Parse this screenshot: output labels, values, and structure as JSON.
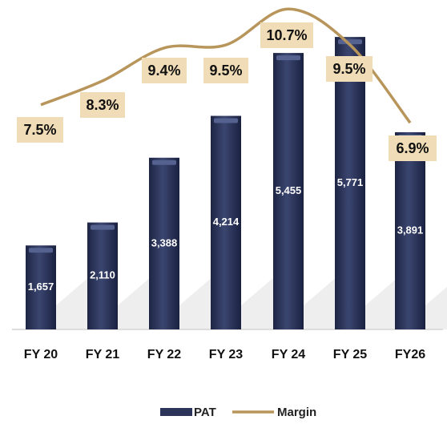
{
  "chart_data": {
    "type": "bar_line",
    "categories": [
      "FY 20",
      "FY 21",
      "FY 22",
      "FY 23",
      "FY 24",
      "FY 25",
      "FY26"
    ],
    "series": [
      {
        "name": "PAT",
        "color": "#2c3559",
        "values": [
          1657,
          2110,
          3388,
          4214,
          5455,
          5771,
          3891
        ],
        "value_labels": [
          "1,657",
          "2,110",
          "3,388",
          "4,214",
          "5,455",
          "5,771",
          "3,891"
        ]
      },
      {
        "name": "Margin",
        "color": "#b8955a",
        "axis": "y2",
        "values": [
          7.5,
          8.3,
          9.4,
          9.5,
          10.7,
          9.5,
          6.9
        ],
        "value_labels": [
          "7.5%",
          "8.3%",
          "9.4%",
          "9.5%",
          "10.7%",
          "9.5%",
          "6.9%"
        ]
      }
    ],
    "ylim": [
      0,
      6500
    ],
    "y2lim": [
      0,
      11
    ],
    "legend": "bottom"
  }
}
